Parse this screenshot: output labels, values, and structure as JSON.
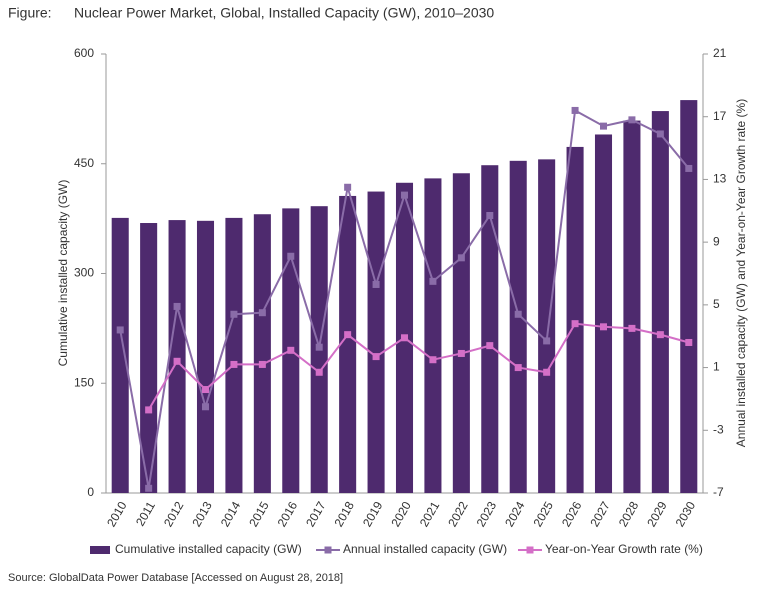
{
  "chart_data": {
    "type": "combo",
    "figure_label": "Figure:",
    "title": "Nuclear Power Market, Global, Installed Capacity (GW), 2010–2030",
    "source": "Source: GlobalData Power Database [Accessed on August 28, 2018]",
    "y_label": "Cumulative installed capacity (GW)",
    "y2_label": "Annual installed capacity (GW) and Year-on-Year Growth rate (%)",
    "categories": [
      "2010",
      "2011",
      "2012",
      "2013",
      "2014",
      "2015",
      "2016",
      "2017",
      "2018",
      "2019",
      "2020",
      "2021",
      "2022",
      "2023",
      "2024",
      "2025",
      "2026",
      "2027",
      "2028",
      "2029",
      "2030"
    ],
    "ylim": [
      0,
      600
    ],
    "yticks": [
      0,
      150,
      300,
      450,
      600
    ],
    "y2lim": [
      -7,
      21
    ],
    "y2ticks": [
      -7,
      -3,
      1,
      5,
      9,
      13,
      17,
      21
    ],
    "series": [
      {
        "name": "Cumulative installed capacity (GW)",
        "type": "bar",
        "color": "#4e2a6e",
        "values": [
          376,
          369,
          373,
          372,
          376,
          381,
          389,
          392,
          406,
          412,
          424,
          430,
          437,
          448,
          454,
          456,
          473,
          490,
          509,
          522,
          537
        ]
      },
      {
        "name": "Annual installed capacity (GW)",
        "type": "line",
        "axis": "y2",
        "color": "#8a6ca8",
        "values": [
          3.4,
          -6.7,
          4.9,
          -1.5,
          4.4,
          4.5,
          8.1,
          2.3,
          12.5,
          6.3,
          12.0,
          6.5,
          8.0,
          10.7,
          4.4,
          2.7,
          17.4,
          16.4,
          16.8,
          15.9,
          13.7
        ]
      },
      {
        "name": "Year-on-Year Growth rate (%)",
        "type": "line",
        "axis": "y2",
        "color": "#d46fc7",
        "values": [
          null,
          -1.7,
          1.4,
          -0.4,
          1.2,
          1.2,
          2.1,
          0.7,
          3.1,
          1.7,
          2.9,
          1.5,
          1.9,
          2.4,
          1.0,
          0.7,
          3.8,
          3.6,
          3.5,
          3.1,
          2.6
        ]
      }
    ]
  }
}
